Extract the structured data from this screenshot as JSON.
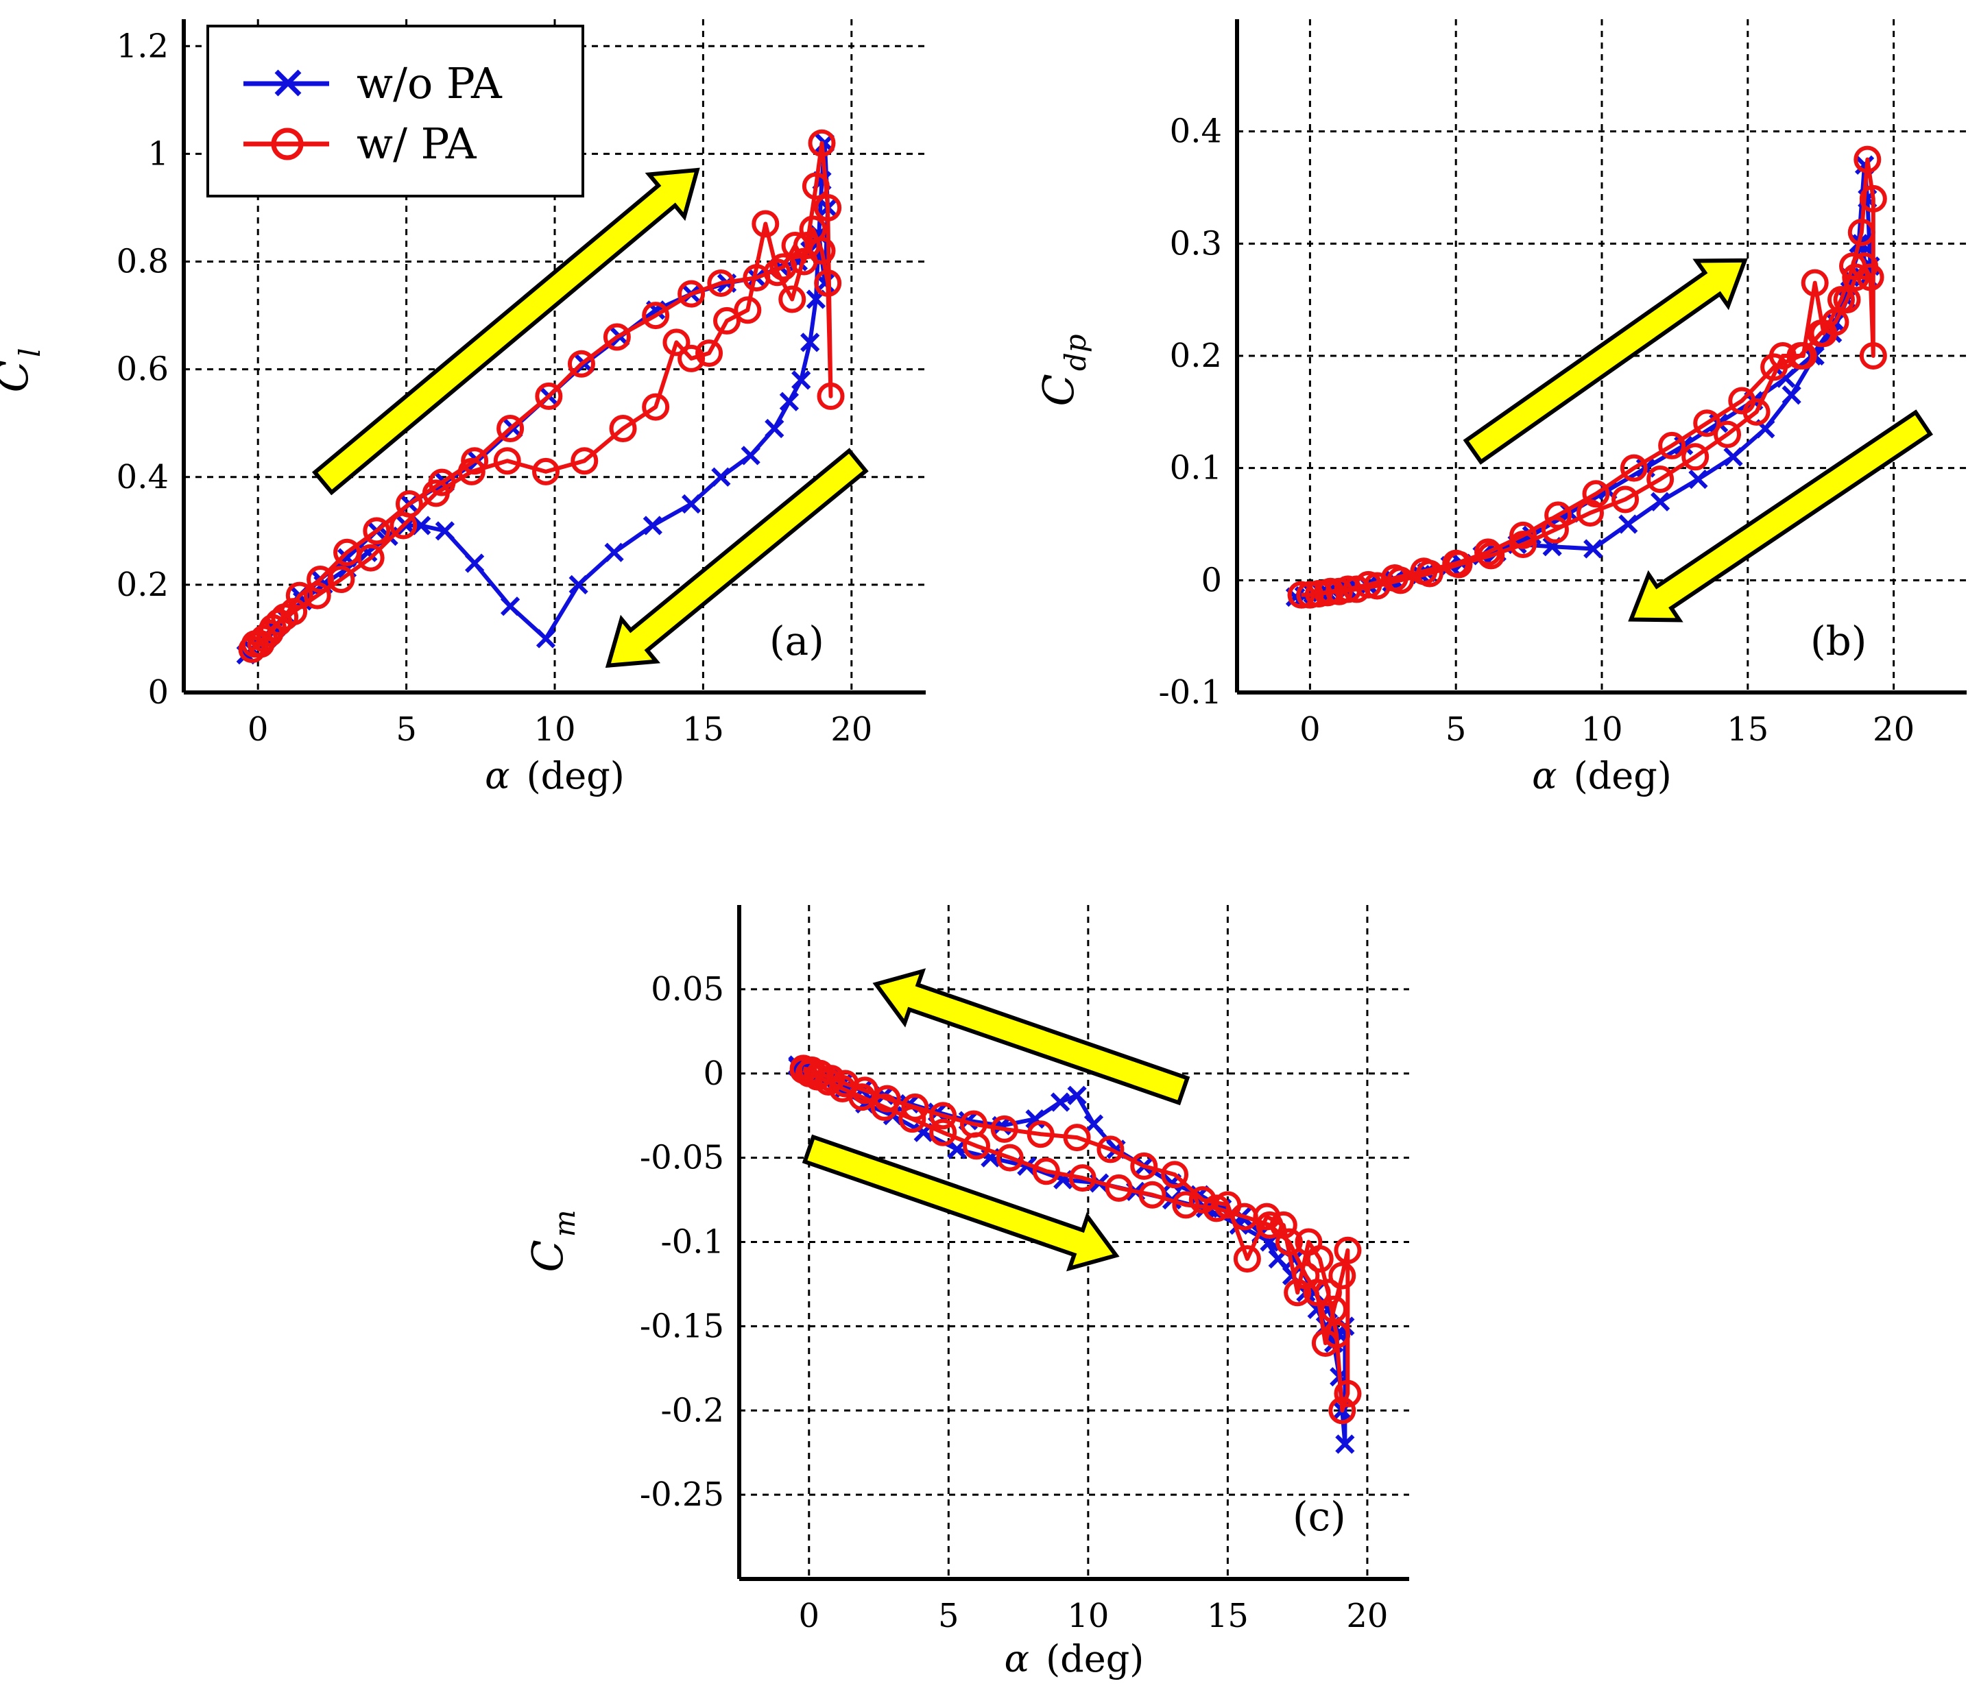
{
  "colors": {
    "series_without_pa": "#1010dd",
    "series_with_pa": "#ee1111",
    "arrow_fill": "#ffff00",
    "grid": "#000000",
    "background": "#ffffff"
  },
  "legend": {
    "location": "top-left of panel (a)",
    "entries": [
      {
        "label": "w/o PA",
        "marker": "x",
        "color": "#1010dd"
      },
      {
        "label": "w/ PA",
        "marker": "o",
        "color": "#ee1111"
      }
    ]
  },
  "chart_data": [
    {
      "type": "line",
      "panel_label": "(a)",
      "xlabel_symbol": "α",
      "xlabel_unit": "(deg)",
      "ylabel_symbol": "C",
      "ylabel_sub": "l",
      "xlim": [
        -2.5,
        22.5
      ],
      "ylim": [
        0,
        1.25
      ],
      "xticks": [
        0,
        5,
        10,
        15,
        20
      ],
      "xtick_labels": [
        "0",
        "5",
        "10",
        "15",
        "20"
      ],
      "yticks": [
        0,
        0.2,
        0.4,
        0.6,
        0.8,
        1,
        1.2
      ],
      "ytick_labels": [
        "0",
        "0.2",
        "0.4",
        "0.6",
        "0.8",
        "1",
        "1.2"
      ],
      "grid": true,
      "arrows": [
        {
          "from": [
            2.2,
            0.39
          ],
          "to": [
            14.8,
            0.97
          ],
          "meaning": "increasing α"
        },
        {
          "from": [
            20.2,
            0.43
          ],
          "to": [
            11.8,
            0.05
          ],
          "meaning": "decreasing α"
        }
      ],
      "series": [
        {
          "name": "w/o PA",
          "marker": "x",
          "color": "#1010dd",
          "x": [
            -0.4,
            -0.2,
            0.0,
            0.3,
            0.6,
            1.0,
            1.5,
            2.2,
            3.0,
            3.7,
            4.4,
            5.0,
            5.5,
            6.3,
            7.3,
            8.5,
            9.7,
            10.8,
            12.0,
            13.3,
            14.6,
            15.6,
            16.6,
            17.4,
            17.9,
            18.3,
            18.6,
            18.8,
            18.9,
            19.0,
            19.1,
            19.2,
            19.1,
            18.9,
            18.6,
            18.2,
            17.6,
            16.8,
            15.8,
            14.6,
            13.4,
            12.2,
            11.0,
            9.8,
            8.6,
            7.4,
            6.3,
            5.1,
            4.0,
            3.0,
            2.1,
            1.4,
            0.9,
            0.5,
            0.2,
            0.0,
            -0.2,
            -0.4
          ],
          "y": [
            0.07,
            0.08,
            0.09,
            0.1,
            0.12,
            0.14,
            0.17,
            0.2,
            0.23,
            0.26,
            0.29,
            0.31,
            0.31,
            0.3,
            0.24,
            0.16,
            0.1,
            0.2,
            0.26,
            0.31,
            0.35,
            0.4,
            0.44,
            0.49,
            0.54,
            0.58,
            0.65,
            0.73,
            0.85,
            0.95,
            1.02,
            0.9,
            0.76,
            0.85,
            0.82,
            0.8,
            0.79,
            0.77,
            0.76,
            0.74,
            0.71,
            0.66,
            0.61,
            0.55,
            0.49,
            0.43,
            0.39,
            0.35,
            0.3,
            0.25,
            0.21,
            0.18,
            0.14,
            0.12,
            0.1,
            0.09,
            0.08,
            0.07
          ]
        },
        {
          "name": "w/ PA",
          "marker": "o",
          "color": "#ee1111",
          "x": [
            -0.2,
            0.1,
            0.4,
            0.7,
            1.2,
            2.0,
            2.8,
            3.8,
            4.9,
            6.0,
            7.2,
            8.4,
            9.7,
            11.0,
            12.3,
            13.4,
            14.1,
            14.6,
            15.2,
            15.8,
            16.5,
            17.1,
            17.5,
            18.0,
            18.5,
            18.8,
            19.0,
            19.2,
            19.3,
            19.2,
            19.0,
            18.7,
            18.4,
            18.1,
            17.7,
            16.8,
            15.6,
            14.6,
            13.4,
            12.1,
            10.9,
            9.8,
            8.5,
            7.3,
            6.2,
            5.1,
            4.0,
            3.0,
            2.1,
            1.4,
            0.9,
            0.5,
            0.2,
            -0.1
          ],
          "y": [
            0.08,
            0.09,
            0.11,
            0.13,
            0.15,
            0.18,
            0.21,
            0.25,
            0.31,
            0.37,
            0.41,
            0.43,
            0.41,
            0.43,
            0.49,
            0.53,
            0.65,
            0.62,
            0.63,
            0.69,
            0.71,
            0.87,
            0.78,
            0.73,
            0.83,
            0.94,
            1.02,
            0.9,
            0.55,
            0.76,
            0.82,
            0.86,
            0.8,
            0.83,
            0.79,
            0.77,
            0.76,
            0.74,
            0.7,
            0.66,
            0.61,
            0.55,
            0.49,
            0.43,
            0.39,
            0.35,
            0.3,
            0.26,
            0.21,
            0.18,
            0.14,
            0.12,
            0.1,
            0.09
          ]
        }
      ]
    },
    {
      "type": "line",
      "panel_label": "(b)",
      "xlabel_symbol": "α",
      "xlabel_unit": "(deg)",
      "ylabel_symbol": "C",
      "ylabel_sub": "dp",
      "xlim": [
        -2.5,
        22.5
      ],
      "ylim": [
        -0.1,
        0.5
      ],
      "xticks": [
        0,
        5,
        10,
        15,
        20
      ],
      "xtick_labels": [
        "0",
        "5",
        "10",
        "15",
        "20"
      ],
      "yticks": [
        -0.1,
        0,
        0.1,
        0.2,
        0.3,
        0.4
      ],
      "ytick_labels": [
        "-0.1",
        "0",
        "0.1",
        "0.2",
        "0.3",
        "0.4"
      ],
      "grid": true,
      "arrows": [
        {
          "from": [
            5.6,
            0.115
          ],
          "to": [
            14.9,
            0.285
          ],
          "meaning": "increasing α"
        },
        {
          "from": [
            21.0,
            0.14
          ],
          "to": [
            11.0,
            -0.035
          ],
          "meaning": "decreasing α"
        }
      ],
      "series": [
        {
          "name": "w/o PA",
          "marker": "x",
          "color": "#1010dd",
          "x": [
            -0.5,
            -0.2,
            0.1,
            0.4,
            0.8,
            1.3,
            2.0,
            2.8,
            3.8,
            4.8,
            5.9,
            7.1,
            8.3,
            9.7,
            10.9,
            12.0,
            13.3,
            14.5,
            15.6,
            16.5,
            17.3,
            17.9,
            18.4,
            18.8,
            19.0,
            19.1,
            19.2,
            19.1,
            18.9,
            18.5,
            18.0,
            17.2,
            16.3,
            15.2,
            14.0,
            12.8,
            11.5,
            10.2,
            8.9,
            7.6,
            6.4,
            5.2,
            4.0,
            2.9,
            2.0,
            1.2,
            0.6,
            0.2,
            -0.2,
            -0.5
          ],
          "y": [
            -0.015,
            -0.014,
            -0.012,
            -0.011,
            -0.01,
            -0.008,
            -0.005,
            -0.002,
            0.005,
            0.013,
            0.022,
            0.032,
            0.03,
            0.028,
            0.05,
            0.07,
            0.09,
            0.11,
            0.135,
            0.165,
            0.2,
            0.22,
            0.25,
            0.3,
            0.37,
            0.34,
            0.28,
            0.27,
            0.3,
            0.27,
            0.23,
            0.2,
            0.18,
            0.16,
            0.14,
            0.12,
            0.1,
            0.08,
            0.06,
            0.04,
            0.025,
            0.015,
            0.007,
            0.0,
            -0.004,
            -0.008,
            -0.011,
            -0.013,
            -0.014,
            -0.015
          ]
        },
        {
          "name": "w/ PA",
          "marker": "o",
          "color": "#ee1111",
          "x": [
            -0.3,
            0.0,
            0.3,
            0.6,
            1.0,
            1.6,
            2.3,
            3.1,
            4.1,
            5.1,
            6.2,
            7.3,
            8.4,
            9.6,
            10.8,
            12.0,
            13.2,
            14.3,
            15.3,
            16.2,
            16.9,
            17.3,
            17.6,
            18.2,
            18.6,
            18.9,
            19.1,
            19.3,
            19.3,
            19.2,
            19.0,
            18.7,
            18.4,
            18.0,
            17.5,
            16.8,
            15.9,
            14.8,
            13.6,
            12.4,
            11.1,
            9.8,
            8.5,
            7.3,
            6.1,
            5.0,
            3.9,
            2.9,
            2.0,
            1.3,
            0.7,
            0.3,
            0.0,
            -0.3
          ],
          "y": [
            -0.013,
            -0.013,
            -0.012,
            -0.011,
            -0.01,
            -0.008,
            -0.005,
            0.0,
            0.006,
            0.014,
            0.022,
            0.032,
            0.045,
            0.06,
            0.072,
            0.09,
            0.11,
            0.13,
            0.15,
            0.2,
            0.2,
            0.265,
            0.22,
            0.25,
            0.28,
            0.31,
            0.375,
            0.34,
            0.2,
            0.27,
            0.28,
            0.27,
            0.25,
            0.23,
            0.22,
            0.2,
            0.19,
            0.16,
            0.14,
            0.12,
            0.1,
            0.077,
            0.058,
            0.04,
            0.025,
            0.015,
            0.008,
            0.002,
            -0.004,
            -0.008,
            -0.01,
            -0.012,
            -0.013,
            -0.013
          ]
        }
      ]
    },
    {
      "type": "line",
      "panel_label": "(c)",
      "xlabel_symbol": "α",
      "xlabel_unit": "(deg)",
      "ylabel_symbol": "C",
      "ylabel_sub": "m",
      "xlim": [
        -2.5,
        21.5
      ],
      "ylim": [
        -0.3,
        0.1
      ],
      "xticks": [
        0,
        5,
        10,
        15,
        20
      ],
      "xtick_labels": [
        "0",
        "5",
        "10",
        "15",
        "20"
      ],
      "yticks": [
        -0.25,
        -0.2,
        -0.15,
        -0.1,
        -0.05,
        0,
        0.05
      ],
      "ytick_labels": [
        "-0.25",
        "-0.2",
        "-0.15",
        "-0.1",
        "-0.05",
        "0",
        "0.05"
      ],
      "grid": true,
      "arrows": [
        {
          "from": [
            13.4,
            -0.01
          ],
          "to": [
            2.4,
            0.053
          ],
          "meaning": "decreasing α"
        },
        {
          "from": [
            0.0,
            -0.045
          ],
          "to": [
            11.0,
            -0.108
          ],
          "meaning": "increasing α"
        }
      ],
      "series": [
        {
          "name": "w/o PA",
          "marker": "x",
          "color": "#1010dd",
          "x": [
            -0.4,
            -0.2,
            0.0,
            0.3,
            0.7,
            1.2,
            1.9,
            2.7,
            3.6,
            4.6,
            5.7,
            6.9,
            8.1,
            9.0,
            9.6,
            10.2,
            11.0,
            12.0,
            13.0,
            14.0,
            14.8,
            15.5,
            16.2,
            16.8,
            17.3,
            17.8,
            18.2,
            18.5,
            18.8,
            19.0,
            19.1,
            19.2,
            19.2,
            19.0,
            18.6,
            18.1,
            17.4,
            16.5,
            15.4,
            14.2,
            13.0,
            11.7,
            10.4,
            9.1,
            7.8,
            6.5,
            5.3,
            4.1,
            3.0,
            2.0,
            1.2,
            0.6,
            0.2,
            -0.2,
            -0.4
          ],
          "y": [
            0.005,
            0.004,
            0.002,
            -0.001,
            -0.003,
            -0.006,
            -0.01,
            -0.013,
            -0.018,
            -0.023,
            -0.028,
            -0.031,
            -0.027,
            -0.017,
            -0.013,
            -0.03,
            -0.045,
            -0.055,
            -0.065,
            -0.072,
            -0.08,
            -0.085,
            -0.095,
            -0.11,
            -0.12,
            -0.13,
            -0.14,
            -0.15,
            -0.16,
            -0.18,
            -0.2,
            -0.22,
            -0.15,
            -0.155,
            -0.14,
            -0.13,
            -0.11,
            -0.1,
            -0.09,
            -0.08,
            -0.075,
            -0.07,
            -0.065,
            -0.063,
            -0.055,
            -0.05,
            -0.045,
            -0.035,
            -0.025,
            -0.018,
            -0.01,
            -0.005,
            -0.002,
            0.002,
            0.004
          ]
        },
        {
          "name": "w/ PA",
          "marker": "o",
          "color": "#ee1111",
          "x": [
            -0.2,
            0.1,
            0.4,
            0.8,
            1.3,
            2.0,
            2.8,
            3.8,
            4.8,
            5.9,
            7.0,
            8.3,
            9.6,
            10.8,
            12.0,
            13.1,
            14.1,
            15.0,
            15.7,
            16.4,
            17.0,
            17.5,
            17.9,
            18.3,
            18.6,
            18.9,
            19.1,
            19.3,
            19.3,
            19.1,
            18.8,
            18.5,
            18.2,
            17.8,
            17.2,
            16.5,
            15.6,
            14.6,
            13.5,
            12.3,
            11.1,
            9.8,
            8.5,
            7.2,
            6.0,
            4.8,
            3.7,
            2.7,
            1.9,
            1.2,
            0.7,
            0.3,
            0.0,
            -0.2
          ],
          "y": [
            0.003,
            0.002,
            0.0,
            -0.003,
            -0.006,
            -0.01,
            -0.015,
            -0.02,
            -0.025,
            -0.03,
            -0.033,
            -0.036,
            -0.038,
            -0.045,
            -0.055,
            -0.06,
            -0.075,
            -0.078,
            -0.11,
            -0.085,
            -0.09,
            -0.13,
            -0.1,
            -0.11,
            -0.13,
            -0.155,
            -0.2,
            -0.19,
            -0.105,
            -0.12,
            -0.14,
            -0.16,
            -0.13,
            -0.12,
            -0.1,
            -0.09,
            -0.085,
            -0.08,
            -0.078,
            -0.072,
            -0.068,
            -0.062,
            -0.058,
            -0.05,
            -0.043,
            -0.035,
            -0.027,
            -0.02,
            -0.014,
            -0.009,
            -0.005,
            -0.002,
            0.0,
            0.002
          ]
        }
      ]
    }
  ]
}
